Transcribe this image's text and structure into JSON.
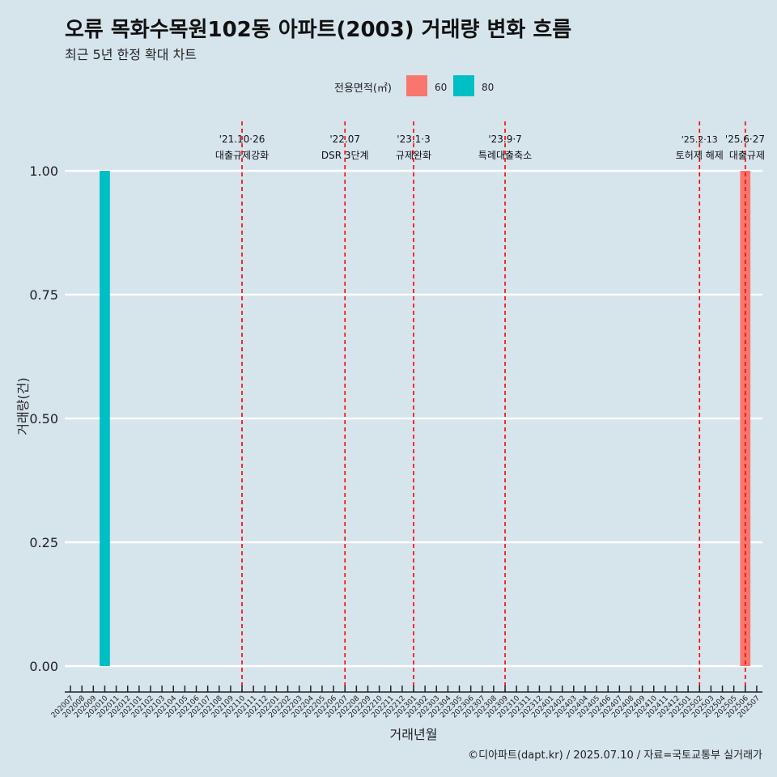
{
  "title": "오류 목화수목원102동 아파트(2003) 거래량 변화 흐름",
  "subtitle": "최근 5년 한정 확대 차트",
  "caption": "©디아파트(dapt.kr) / 2025.07.10 / 자료=국토교통부 실거래가",
  "colors": {
    "background": "#d6e4ec",
    "series_60": "#f8766d",
    "series_80": "#00bfc4",
    "event_line": "#ff0000",
    "grid": "#ffffff"
  },
  "chart_data": {
    "type": "bar",
    "title": "오류 목화수목원102동 아파트(2003) 거래량 변화 흐름",
    "subtitle": "최근 5년 한정 확대 차트",
    "xlabel": "거래년월",
    "ylabel": "거래량(건)",
    "ylim": [
      0,
      1
    ],
    "yticks": [
      "0.00",
      "0.25",
      "0.50",
      "0.75",
      "1.00"
    ],
    "legend_title": "전용면적(㎡)",
    "legend_position": "top",
    "grid": true,
    "categories": [
      "202007",
      "202008",
      "202009",
      "202010",
      "202011",
      "202012",
      "202101",
      "202102",
      "202103",
      "202104",
      "202105",
      "202106",
      "202107",
      "202108",
      "202109",
      "202110",
      "202111",
      "202112",
      "202201",
      "202202",
      "202203",
      "202204",
      "202205",
      "202206",
      "202207",
      "202208",
      "202209",
      "202210",
      "202211",
      "202212",
      "202301",
      "202302",
      "202303",
      "202304",
      "202305",
      "202306",
      "202307",
      "202308",
      "202309",
      "202310",
      "202311",
      "202312",
      "202401",
      "202402",
      "202403",
      "202404",
      "202405",
      "202406",
      "202407",
      "202408",
      "202409",
      "202410",
      "202411",
      "202412",
      "202501",
      "202502",
      "202503",
      "202504",
      "202505",
      "202506",
      "202507"
    ],
    "series": [
      {
        "name": "60",
        "color": "#f8766d",
        "points": [
          {
            "x": "202506",
            "y": 1
          }
        ]
      },
      {
        "name": "80",
        "color": "#00bfc4",
        "points": [
          {
            "x": "202010",
            "y": 1
          }
        ]
      }
    ],
    "events": [
      {
        "x": "202110",
        "date": "'21.10·26",
        "label": "대출규제강화"
      },
      {
        "x": "202207",
        "date": "'22.07",
        "label": "DSR 3단계"
      },
      {
        "x": "202301",
        "date": "'23.1·3",
        "label": "규제완화"
      },
      {
        "x": "202309",
        "date": "'23.9·7",
        "label": "특례대출축소"
      },
      {
        "x": "202502",
        "date": "'25.2·13",
        "label": "토허제 해제"
      },
      {
        "x": "202506",
        "date": "'25.6·27",
        "label": "대출규제"
      }
    ]
  }
}
